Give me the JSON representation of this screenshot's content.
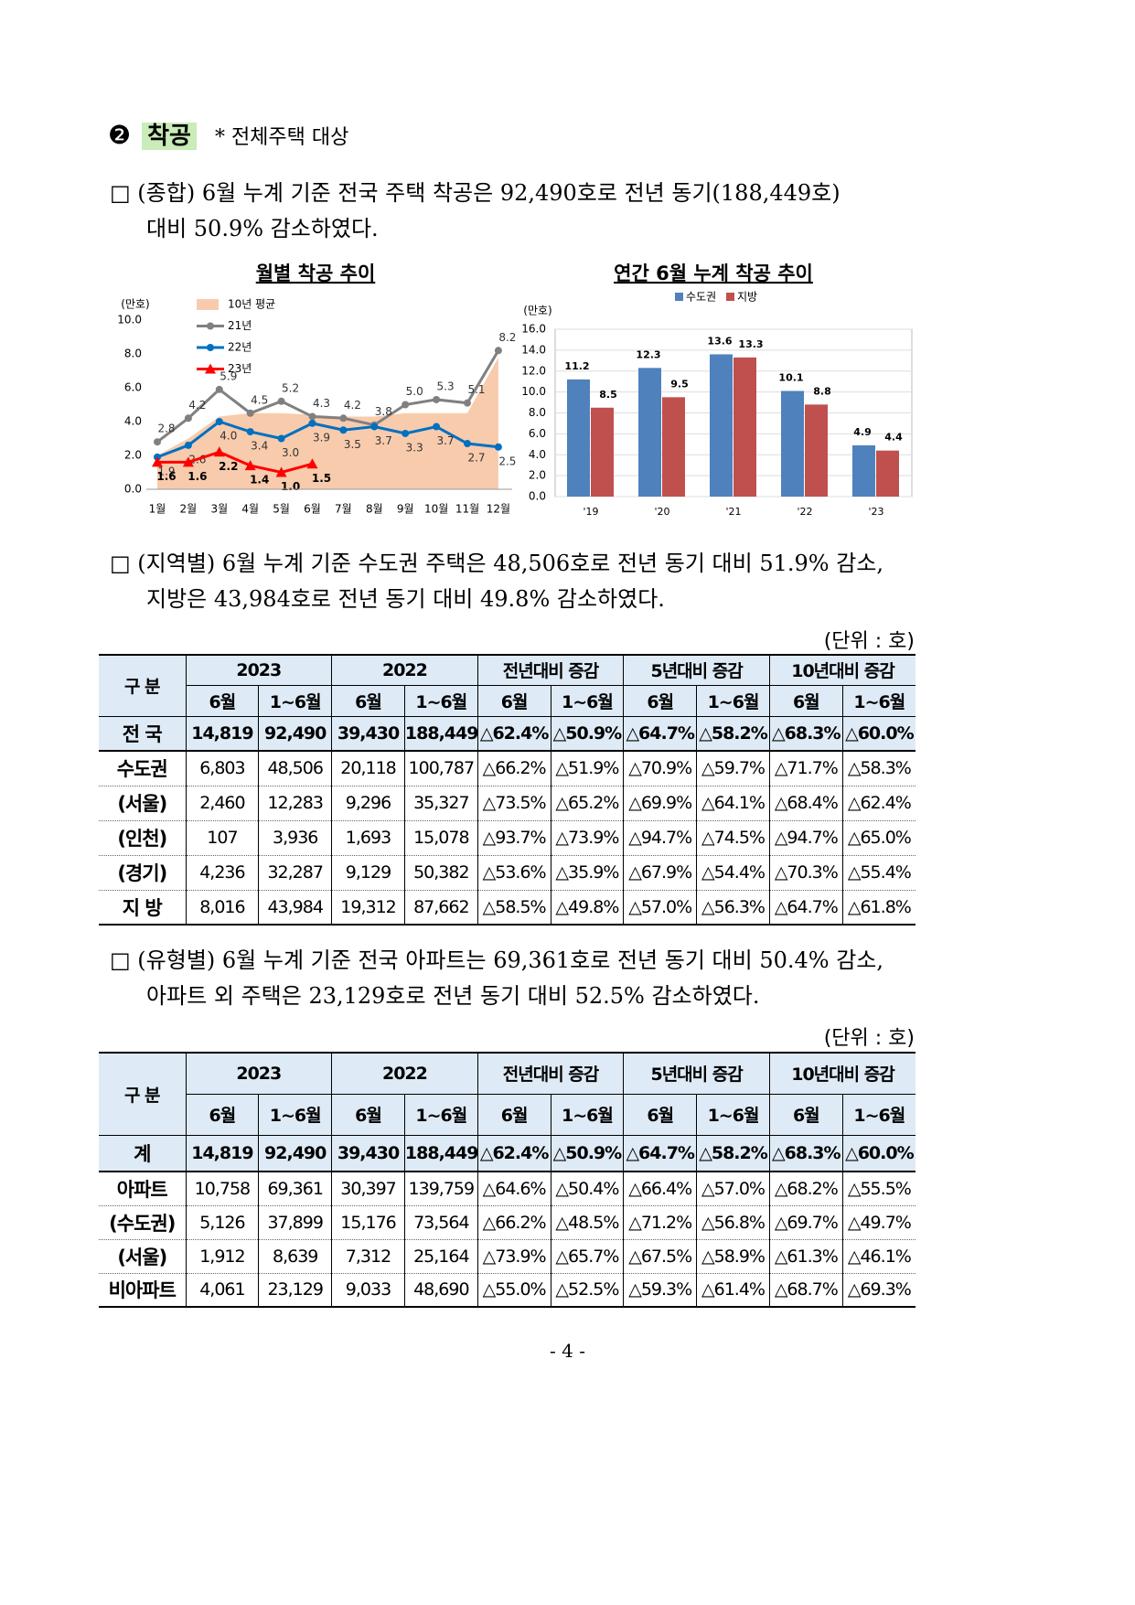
{
  "heading": {
    "number": "❷",
    "title": "착공",
    "note": "* 전체주택 대상"
  },
  "paragraphs": [
    [
      "□ (종합) 6월 누계 기준 전국 주택 착공은 92,490호로 전년 동기(188,449호)",
      "대비 50.9% 감소하였다."
    ],
    [
      "□ (지역별) 6월 누계 기준 수도권 주택은 48,506호로 전년 동기 대비 51.9% 감소,",
      "지방은 43,984호로 전년 동기 대비 49.8% 감소하였다."
    ],
    [
      "□ (유형별) 6월 누계 기준 전국 아파트는 69,361호로 전년 동기 대비 50.4% 감소,",
      "아파트 외 주택은 23,129호로 전년 동기 대비 52.5% 감소하였다."
    ]
  ],
  "chart_data": [
    {
      "type": "line",
      "title": "월별 착공 추이",
      "unit": "(만호)",
      "categories": [
        "1월",
        "2월",
        "3월",
        "4월",
        "5월",
        "6월",
        "7월",
        "8월",
        "9월",
        "10월",
        "11월",
        "12월"
      ],
      "ylim": [
        0,
        10
      ],
      "yticks": [
        {
          "value": 0,
          "label": "0.0"
        },
        {
          "value": 2,
          "label": "2.0"
        },
        {
          "value": 4,
          "label": "4.0"
        },
        {
          "value": 6,
          "label": "6.0"
        },
        {
          "value": 8,
          "label": "8.0"
        },
        {
          "value": 10,
          "label": "10.0"
        }
      ],
      "grid": false,
      "series": [
        {
          "name": "10년 평균",
          "kind": "area",
          "color": "#f8cbad",
          "values": [
            2.0,
            3.0,
            4.3,
            4.5,
            4.5,
            4.4,
            4.3,
            4.3,
            4.5,
            4.5,
            4.5,
            7.8
          ]
        },
        {
          "name": "21년",
          "kind": "line",
          "marker": "circle",
          "color": "#808080",
          "values": [
            2.8,
            4.2,
            5.9,
            4.5,
            5.2,
            4.3,
            4.2,
            3.8,
            5.0,
            5.3,
            5.1,
            8.2
          ],
          "value_labels": [
            "2.8",
            "4.2",
            "5.9",
            "4.5",
            "5.2",
            "4.3",
            "4.2",
            "3.8",
            "5.0",
            "5.3",
            "5.1",
            "8.2"
          ]
        },
        {
          "name": "22년",
          "kind": "line",
          "marker": "circle",
          "color": "#0070c0",
          "values": [
            1.9,
            2.6,
            4.0,
            3.4,
            3.0,
            3.9,
            3.5,
            3.7,
            3.3,
            3.7,
            2.7,
            2.5
          ],
          "value_labels": [
            "1.9",
            "2.6",
            "4.0",
            "3.4",
            "3.0",
            "3.9",
            "3.5",
            "3.7",
            "3.3",
            "3.7",
            "2.7",
            "2.5"
          ]
        },
        {
          "name": "23년",
          "kind": "line",
          "marker": "triangle",
          "color": "#ff0000",
          "values": [
            1.6,
            1.6,
            2.2,
            1.4,
            1.0,
            1.5,
            null,
            null,
            null,
            null,
            null,
            null
          ],
          "value_labels": [
            "1.6",
            "1.6",
            "2.2",
            "1.4",
            "1.0",
            "1.5",
            null,
            null,
            null,
            null,
            null,
            null
          ]
        }
      ]
    },
    {
      "type": "bar",
      "title": "연간 6월 누계 착공 추이",
      "unit": "(만호)",
      "categories": [
        "'19",
        "'20",
        "'21",
        "'22",
        "'23"
      ],
      "ylim": [
        0,
        16
      ],
      "yticks": [
        {
          "value": 0,
          "label": "0.0"
        },
        {
          "value": 2,
          "label": "2.0"
        },
        {
          "value": 4,
          "label": "4.0"
        },
        {
          "value": 6,
          "label": "6.0"
        },
        {
          "value": 8,
          "label": "8.0"
        },
        {
          "value": 10,
          "label": "10.0"
        },
        {
          "value": 12,
          "label": "12.0"
        },
        {
          "value": 14,
          "label": "14.0"
        },
        {
          "value": 16,
          "label": "16.0"
        }
      ],
      "grid": true,
      "legend": "top",
      "series": [
        {
          "name": "수도권",
          "color": "#4f81bd",
          "values": [
            11.2,
            12.3,
            13.6,
            10.1,
            4.9
          ]
        },
        {
          "name": "지방",
          "color": "#c0504d",
          "values": [
            8.5,
            9.5,
            13.3,
            8.8,
            4.4
          ]
        }
      ]
    }
  ],
  "tables": [
    {
      "unit": "(단위 : 호)",
      "header": {
        "label": "구 분",
        "groups": [
          "2023",
          "2022",
          "전년대비 증감",
          "5년대비 증감",
          "10년대비 증감"
        ],
        "sub": [
          "6월",
          "1~6월",
          "6월",
          "1~6월",
          "6월",
          "1~6월",
          "6월",
          "1~6월",
          "6월",
          "1~6월"
        ]
      },
      "rows": [
        {
          "label": "전 국",
          "cells": [
            "14,819",
            "92,490",
            "39,430",
            "188,449",
            "△62.4%",
            "△50.9%",
            "△64.7%",
            "△58.2%",
            "△68.3%",
            "△60.0%"
          ]
        },
        {
          "label": "수도권",
          "cells": [
            "6,803",
            "48,506",
            "20,118",
            "100,787",
            "△66.2%",
            "△51.9%",
            "△70.9%",
            "△59.7%",
            "△71.7%",
            "△58.3%"
          ]
        },
        {
          "label": "(서울)",
          "cells": [
            "2,460",
            "12,283",
            "9,296",
            "35,327",
            "△73.5%",
            "△65.2%",
            "△69.9%",
            "△64.1%",
            "△68.4%",
            "△62.4%"
          ]
        },
        {
          "label": "(인천)",
          "cells": [
            "107",
            "3,936",
            "1,693",
            "15,078",
            "△93.7%",
            "△73.9%",
            "△94.7%",
            "△74.5%",
            "△94.7%",
            "△65.0%"
          ]
        },
        {
          "label": "(경기)",
          "cells": [
            "4,236",
            "32,287",
            "9,129",
            "50,382",
            "△53.6%",
            "△35.9%",
            "△67.9%",
            "△54.4%",
            "△70.3%",
            "△55.4%"
          ]
        },
        {
          "label": "지 방",
          "cells": [
            "8,016",
            "43,984",
            "19,312",
            "87,662",
            "△58.5%",
            "△49.8%",
            "△57.0%",
            "△56.3%",
            "△64.7%",
            "△61.8%"
          ]
        }
      ]
    },
    {
      "unit": "(단위 : 호)",
      "header": {
        "label": "구 분",
        "groups": [
          "2023",
          "2022",
          "전년대비 증감",
          "5년대비 증감",
          "10년대비 증감"
        ],
        "sub": [
          "6월",
          "1~6월",
          "6월",
          "1~6월",
          "6월",
          "1~6월",
          "6월",
          "1~6월",
          "6월",
          "1~6월"
        ]
      },
      "rows": [
        {
          "label": "계",
          "cells": [
            "14,819",
            "92,490",
            "39,430",
            "188,449",
            "△62.4%",
            "△50.9%",
            "△64.7%",
            "△58.2%",
            "△68.3%",
            "△60.0%"
          ]
        },
        {
          "label": "아파트",
          "cells": [
            "10,758",
            "69,361",
            "30,397",
            "139,759",
            "△64.6%",
            "△50.4%",
            "△66.4%",
            "△57.0%",
            "△68.2%",
            "△55.5%"
          ]
        },
        {
          "label": "(수도권)",
          "cells": [
            "5,126",
            "37,899",
            "15,176",
            "73,564",
            "△66.2%",
            "△48.5%",
            "△71.2%",
            "△56.8%",
            "△69.7%",
            "△49.7%"
          ]
        },
        {
          "label": "(서울)",
          "cells": [
            "1,912",
            "8,639",
            "7,312",
            "25,164",
            "△73.9%",
            "△65.7%",
            "△67.5%",
            "△58.9%",
            "△61.3%",
            "△46.1%"
          ]
        },
        {
          "label": "비아파트",
          "cells": [
            "4,061",
            "23,129",
            "9,033",
            "48,690",
            "△55.0%",
            "△52.5%",
            "△59.3%",
            "△61.4%",
            "△68.7%",
            "△69.3%"
          ]
        }
      ]
    }
  ],
  "footer": {
    "page": "- 4 -"
  }
}
